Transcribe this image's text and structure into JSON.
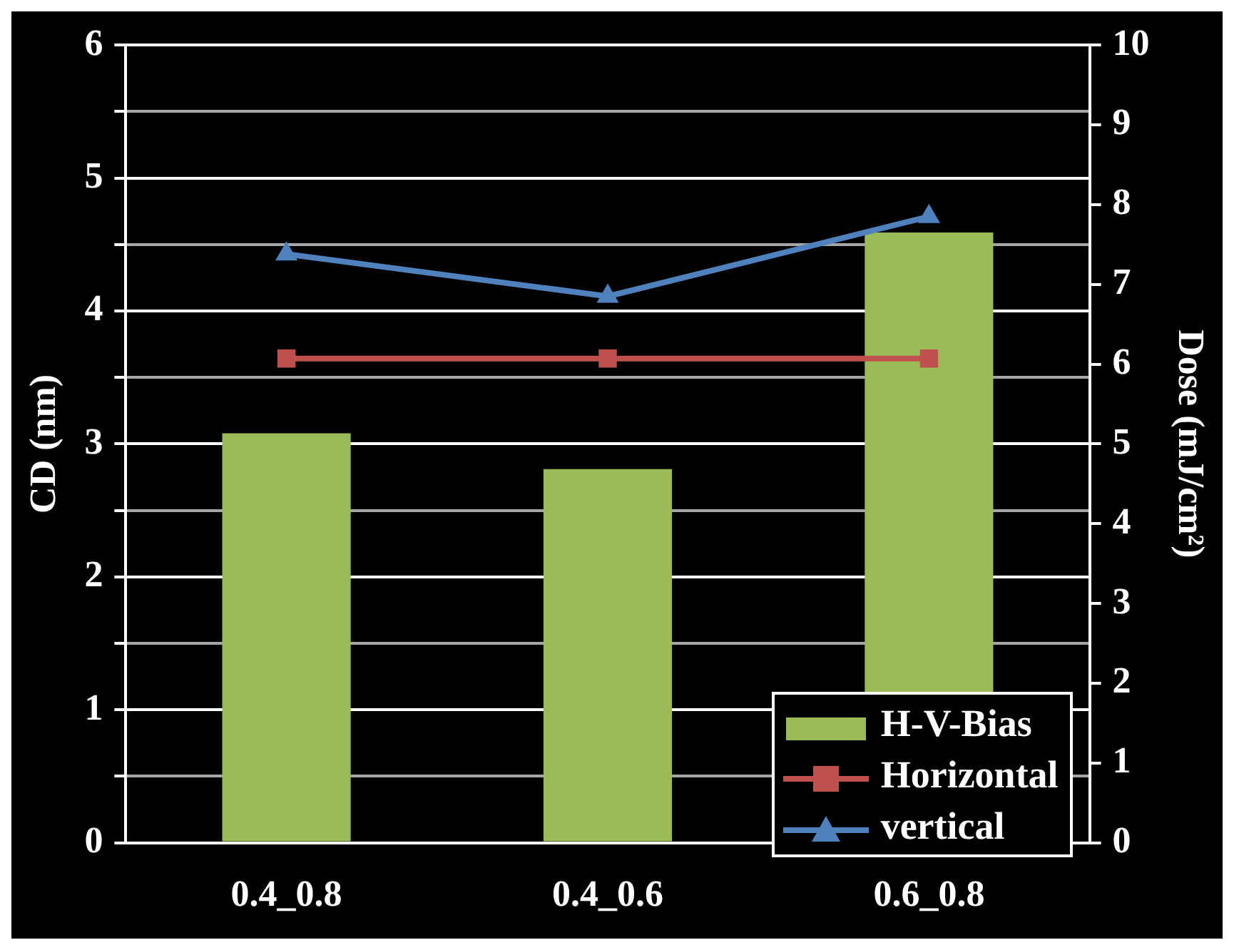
{
  "chart_data": {
    "type": "bar",
    "categories": [
      "0.4_0.8",
      "0.4_0.6",
      "0.6_0.8"
    ],
    "series": [
      {
        "name": "H-V-Bias",
        "axis": "y",
        "color": "#9bbb59",
        "values": [
          3.08,
          2.81,
          4.59
        ]
      },
      {
        "name": "Horizontal",
        "type": "line",
        "axis": "y2",
        "color": "#c0504d",
        "marker": "square",
        "values": [
          6.07,
          6.07,
          6.07
        ]
      },
      {
        "name": "vertical",
        "type": "line",
        "axis": "y2",
        "color": "#4f81bd",
        "marker": "triangle",
        "values": [
          7.38,
          6.85,
          7.85
        ]
      }
    ],
    "ylabel": "CD (nm)",
    "y2label": "Dose (mJ/cm²)",
    "ylim": [
      0,
      6
    ],
    "yticks": [
      0,
      {
        "value": 0.5,
        "label": null
      },
      1,
      {
        "value": 1.5,
        "label": null
      },
      2,
      {
        "value": 2.5,
        "label": null
      },
      3,
      {
        "value": 3.5,
        "label": null
      },
      4,
      {
        "value": 4.5,
        "label": null
      },
      5,
      {
        "value": 5.5,
        "label": null
      },
      6
    ],
    "y2lim": [
      0,
      10
    ],
    "y2ticks": [
      0,
      1,
      2,
      3,
      4,
      5,
      6,
      7,
      8,
      9,
      10
    ],
    "grid": "y",
    "legend": "bottom right",
    "line_style": "solid"
  }
}
